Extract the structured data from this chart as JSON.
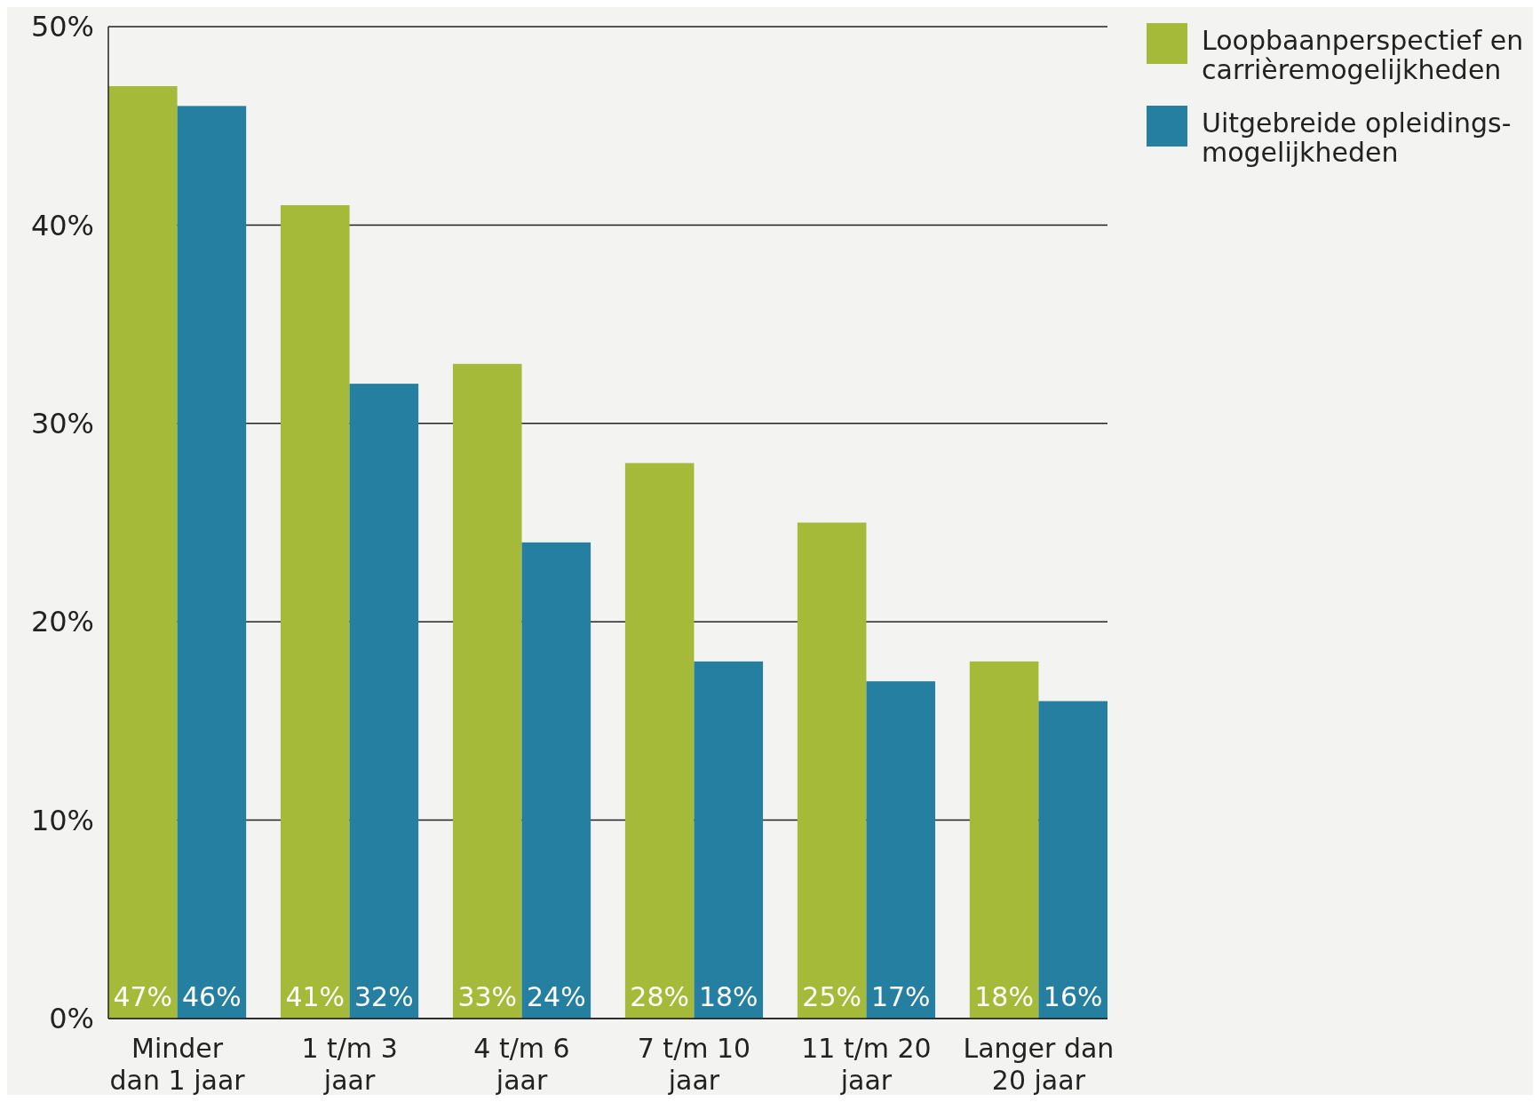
{
  "chart_data": {
    "type": "bar",
    "categories": [
      "Minder\ndan 1 jaar",
      "1 t/m 3\njaar",
      "4 t/m 6\njaar",
      "7 t/m 10\njaar",
      "11 t/m 20\njaar",
      "Langer dan\n20 jaar"
    ],
    "series": [
      {
        "name": "Loopbaanperspectief en\ncarrièremogelijkheden",
        "color": "#a6ba3a",
        "values": [
          47,
          41,
          33,
          28,
          25,
          18
        ],
        "value_labels": [
          "47%",
          "41%",
          "33%",
          "28%",
          "25%",
          "18%"
        ]
      },
      {
        "name": "Uitgebreide opleidings-\nmogelijkheden",
        "color": "#247fa0",
        "values": [
          46,
          32,
          24,
          18,
          17,
          16
        ],
        "value_labels": [
          "46%",
          "32%",
          "24%",
          "18%",
          "17%",
          "16%"
        ]
      }
    ],
    "ylim": [
      0,
      50
    ],
    "yticks": [
      {
        "value": 0,
        "label": "0%"
      },
      {
        "value": 10,
        "label": "10%"
      },
      {
        "value": 20,
        "label": "20%"
      },
      {
        "value": 30,
        "label": "30%"
      },
      {
        "value": 40,
        "label": "40%"
      },
      {
        "value": 50,
        "label": "50%"
      }
    ],
    "grid": "y",
    "legend": "top right"
  }
}
